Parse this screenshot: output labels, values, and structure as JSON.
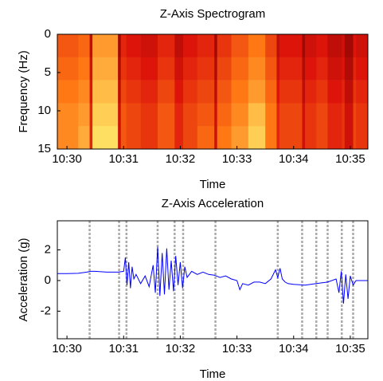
{
  "chart_data": [
    {
      "type": "heatmap",
      "title": "Z-Axis Spectrogram",
      "xlabel": "Time",
      "ylabel": "Frequency (Hz)",
      "time_bins": [
        29.83,
        30.2,
        30.4,
        30.45,
        30.9,
        30.95,
        31.05,
        31.3,
        31.6,
        31.9,
        32.05,
        32.3,
        32.6,
        32.65,
        32.9,
        33.2,
        33.5,
        33.7,
        33.75,
        34.15,
        34.2,
        34.4,
        34.6,
        34.85,
        34.9,
        35.05,
        35.1,
        35.31
      ],
      "frequency_bins": [
        0,
        3,
        6,
        9,
        12,
        15
      ],
      "values": [
        [
          0.55,
          0.6,
          0.25,
          0.75,
          0.15,
          0.4,
          0.35,
          0.3,
          0.4,
          0.25,
          0.35,
          0.4,
          0.15,
          0.45,
          0.55,
          0.65,
          0.5,
          0.25,
          0.35,
          0.15,
          0.3,
          0.35,
          0.25,
          0.3,
          0.15,
          0.35,
          0.3
        ],
        [
          0.6,
          0.65,
          0.3,
          0.8,
          0.2,
          0.45,
          0.4,
          0.35,
          0.45,
          0.3,
          0.4,
          0.45,
          0.2,
          0.5,
          0.6,
          0.7,
          0.55,
          0.3,
          0.4,
          0.2,
          0.35,
          0.4,
          0.3,
          0.35,
          0.2,
          0.4,
          0.35
        ],
        [
          0.65,
          0.7,
          0.35,
          0.85,
          0.25,
          0.5,
          0.45,
          0.4,
          0.5,
          0.35,
          0.45,
          0.5,
          0.25,
          0.55,
          0.65,
          0.75,
          0.6,
          0.35,
          0.45,
          0.25,
          0.4,
          0.45,
          0.35,
          0.4,
          0.25,
          0.45,
          0.4
        ],
        [
          0.7,
          0.75,
          0.4,
          0.9,
          0.3,
          0.55,
          0.5,
          0.45,
          0.55,
          0.4,
          0.5,
          0.55,
          0.3,
          0.6,
          0.7,
          0.85,
          0.65,
          0.4,
          0.5,
          0.3,
          0.45,
          0.5,
          0.4,
          0.45,
          0.3,
          0.5,
          0.45
        ],
        [
          0.7,
          0.8,
          0.4,
          0.95,
          0.3,
          0.55,
          0.5,
          0.45,
          0.55,
          0.4,
          0.5,
          0.6,
          0.3,
          0.65,
          0.75,
          0.9,
          0.65,
          0.4,
          0.5,
          0.3,
          0.45,
          0.5,
          0.4,
          0.45,
          0.3,
          0.5,
          0.45
        ]
      ],
      "xlim": [
        29.83,
        35.31
      ],
      "ylim": [
        15,
        0
      ],
      "xticks": [
        {
          "value": 30,
          "label": "10:30"
        },
        {
          "value": 31,
          "label": "10:31"
        },
        {
          "value": 32,
          "label": "10:32"
        },
        {
          "value": 33,
          "label": "10:33"
        },
        {
          "value": 34,
          "label": "10:34"
        },
        {
          "value": 35,
          "label": "10:35"
        }
      ],
      "yticks": [
        0,
        5,
        10,
        15
      ]
    },
    {
      "type": "line",
      "title": "Z-Axis Acceleration",
      "xlabel": "Time",
      "ylabel": "Acceleration (g)",
      "color": "#0000ff",
      "x": [
        29.83,
        30.0,
        30.2,
        30.35,
        30.42,
        30.5,
        30.7,
        30.9,
        31.0,
        31.03,
        31.06,
        31.09,
        31.12,
        31.15,
        31.18,
        31.22,
        31.3,
        31.38,
        31.45,
        31.52,
        31.56,
        31.6,
        31.64,
        31.68,
        31.72,
        31.76,
        31.8,
        31.84,
        31.88,
        31.92,
        31.96,
        32.0,
        32.04,
        32.08,
        32.12,
        32.2,
        32.3,
        32.4,
        32.5,
        32.6,
        32.7,
        32.8,
        32.9,
        33.0,
        33.05,
        33.1,
        33.2,
        33.3,
        33.4,
        33.5,
        33.6,
        33.68,
        33.72,
        33.76,
        33.8,
        33.85,
        33.9,
        34.0,
        34.2,
        34.4,
        34.6,
        34.75,
        34.8,
        34.84,
        34.88,
        34.92,
        34.96,
        35.0,
        35.05,
        35.1,
        35.2,
        35.31
      ],
      "values": [
        0.45,
        0.45,
        0.47,
        0.55,
        0.6,
        0.6,
        0.55,
        0.55,
        0.6,
        1.5,
        -0.3,
        1.2,
        -0.5,
        0.9,
        0.1,
        0.4,
        -0.2,
        0.3,
        -0.4,
        1.0,
        -0.8,
        2.2,
        -1.0,
        1.8,
        -0.9,
        2.1,
        -0.6,
        1.3,
        -0.7,
        1.6,
        -0.3,
        1.2,
        -0.5,
        0.9,
        0.2,
        0.6,
        0.4,
        0.55,
        0.4,
        0.35,
        0.2,
        0.3,
        0.1,
        0.0,
        -0.6,
        -0.2,
        -0.3,
        -0.1,
        -0.1,
        -0.2,
        0.1,
        0.7,
        0.2,
        0.8,
        0.1,
        -0.1,
        -0.2,
        -0.25,
        -0.3,
        -0.2,
        -0.1,
        0.1,
        -0.8,
        0.6,
        -1.5,
        0.4,
        -1.2,
        0.3,
        -0.3,
        0.0,
        0.0,
        0.0
      ],
      "markers": [
        30.4,
        30.92,
        31.05,
        31.6,
        31.9,
        32.05,
        32.62,
        33.72,
        34.15,
        34.4,
        34.6,
        34.85,
        35.05
      ],
      "xlim": [
        29.83,
        35.31
      ],
      "ylim": [
        -3.8,
        3.9
      ],
      "xticks": [
        {
          "value": 30,
          "label": "10:30"
        },
        {
          "value": 31,
          "label": "10:31"
        },
        {
          "value": 32,
          "label": "10:32"
        },
        {
          "value": 33,
          "label": "10:33"
        },
        {
          "value": 34,
          "label": "10:34"
        },
        {
          "value": 35,
          "label": "10:35"
        }
      ],
      "yticks": [
        -2,
        0,
        2
      ]
    }
  ]
}
